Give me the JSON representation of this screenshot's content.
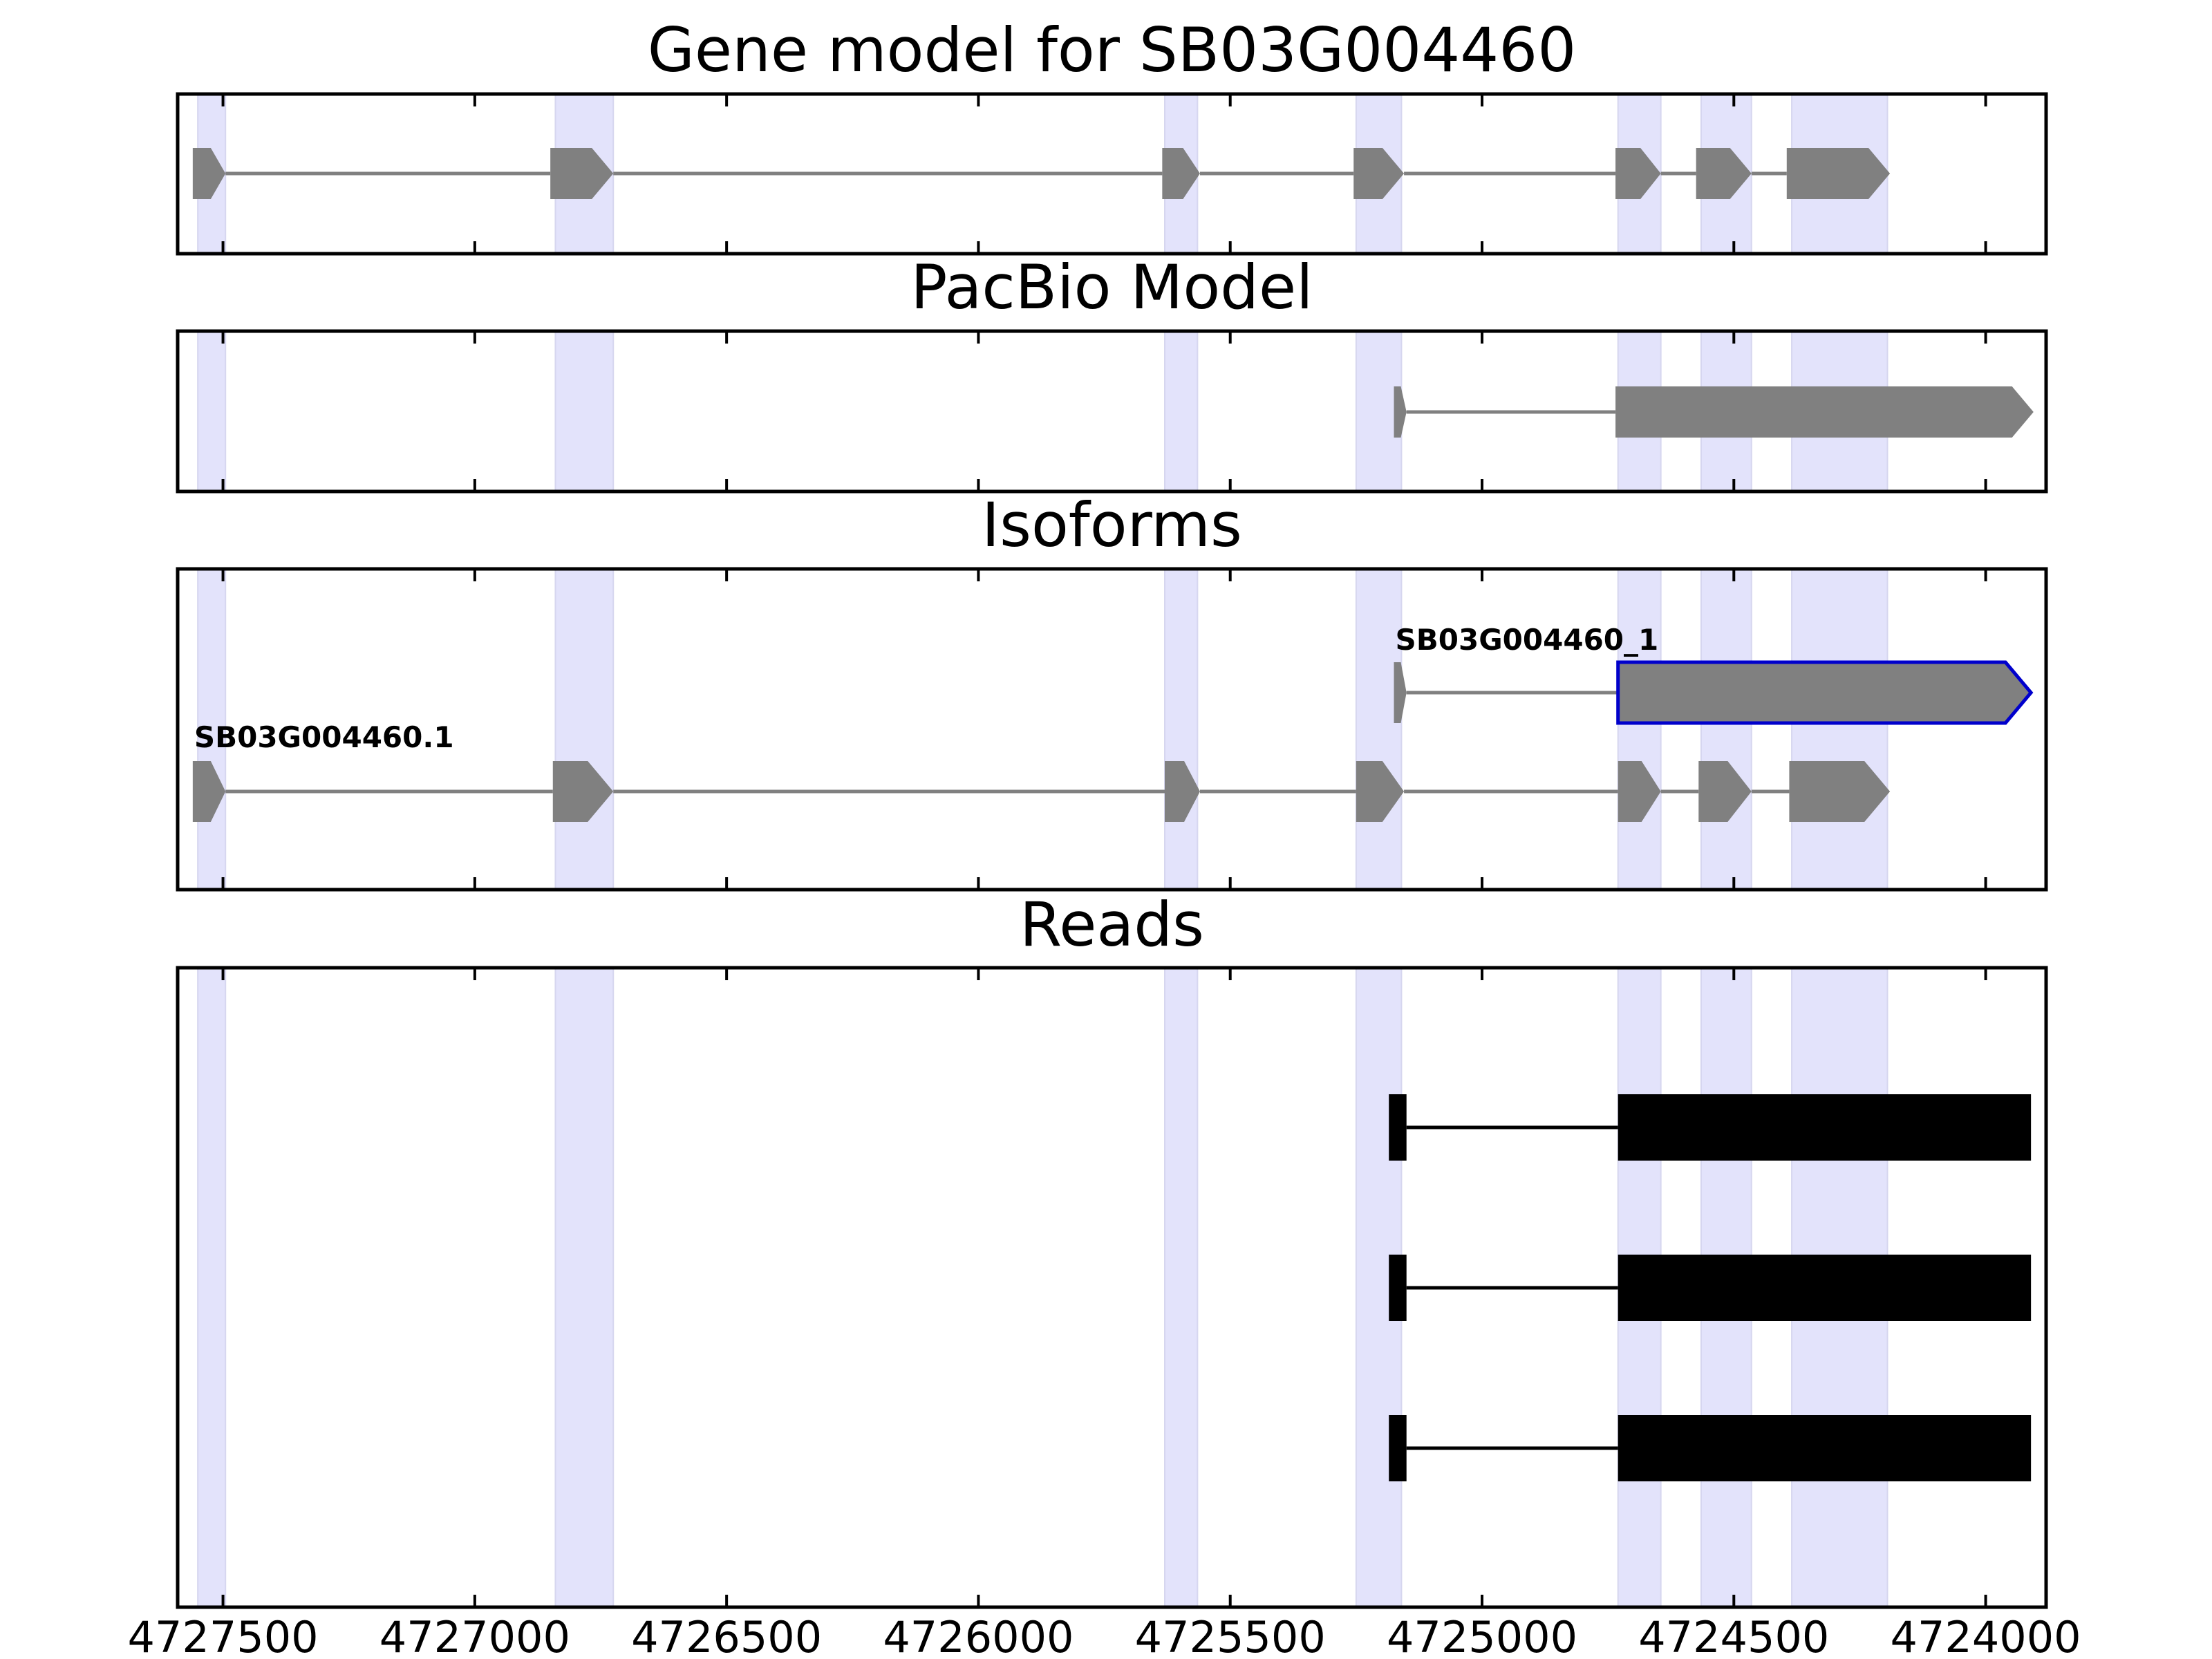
{
  "chart_data": {
    "type": "gene-track",
    "x_reversed": true,
    "xlim": [
      4727590,
      4723880
    ],
    "xticks": [
      4727500,
      4727000,
      4726500,
      4726000,
      4725500,
      4725000,
      4724500,
      4724000
    ],
    "xtick_labels": [
      "4727500",
      "4727000",
      "4726500",
      "4726000",
      "4725500",
      "4725000",
      "4724500",
      "4724000"
    ],
    "highlight_regions": [
      [
        4727550,
        4727495
      ],
      [
        4726840,
        4726725
      ],
      [
        4725630,
        4725565
      ],
      [
        4725250,
        4725160
      ],
      [
        4724730,
        4724645
      ],
      [
        4724565,
        4724465
      ],
      [
        4724385,
        4724195
      ]
    ],
    "colors": {
      "highlight": "#e3e3fb",
      "exon": "#808080",
      "intron": "#808080",
      "read": "#000000",
      "selected_outline": "#0000cc"
    },
    "panels": [
      {
        "title": "Gene model for SB03G004460",
        "tracks": [
          {
            "label": "",
            "style": "arrow",
            "selected": false,
            "exons": [
              [
                4727560,
                4727495
              ],
              [
                4726850,
                4726725
              ],
              [
                4725635,
                4725560
              ],
              [
                4725255,
                4725155
              ],
              [
                4724735,
                4724645
              ],
              [
                4724575,
                4724465
              ],
              [
                4724395,
                4724190
              ]
            ]
          }
        ]
      },
      {
        "title": "PacBio Model",
        "tracks": [
          {
            "label": "",
            "style": "arrow",
            "selected": false,
            "exons": [
              [
                4725175,
                4725150
              ],
              [
                4724735,
                4723905
              ]
            ]
          }
        ]
      },
      {
        "title": "Isoforms",
        "tracks": [
          {
            "label": "SB03G004460_1",
            "style": "arrow",
            "selected": true,
            "exons": [
              [
                4725175,
                4725150
              ],
              [
                4724730,
                4723910
              ]
            ]
          },
          {
            "label": "SB03G004460.1",
            "style": "arrow",
            "selected": false,
            "exons": [
              [
                4727560,
                4727495
              ],
              [
                4726845,
                4726725
              ],
              [
                4725630,
                4725560
              ],
              [
                4725250,
                4725155
              ],
              [
                4724730,
                4724645
              ],
              [
                4724570,
                4724465
              ],
              [
                4724390,
                4724190
              ]
            ]
          }
        ]
      },
      {
        "title": "Reads",
        "tracks": [
          {
            "label": "",
            "style": "block",
            "selected": false,
            "exons": [
              [
                4725185,
                4725150
              ],
              [
                4724730,
                4723910
              ]
            ]
          },
          {
            "label": "",
            "style": "block",
            "selected": false,
            "exons": [
              [
                4725185,
                4725150
              ],
              [
                4724730,
                4723910
              ]
            ]
          },
          {
            "label": "",
            "style": "block",
            "selected": false,
            "exons": [
              [
                4725185,
                4725150
              ],
              [
                4724730,
                4723910
              ]
            ]
          }
        ]
      }
    ]
  }
}
